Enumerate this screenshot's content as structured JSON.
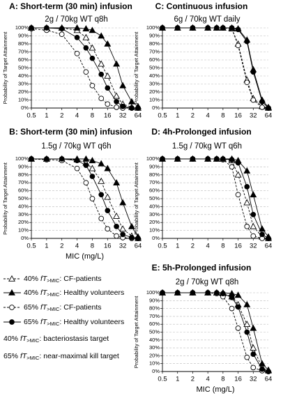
{
  "legend": {
    "entries": [
      {
        "prefix": "40% ",
        "metric_f": "f",
        "metric_t": "T",
        "subscript": ">MIC",
        "suffix": ": CF-patients",
        "marker": "triangle",
        "filled": false,
        "dashed": true
      },
      {
        "prefix": "40% ",
        "metric_f": "f",
        "metric_t": "T",
        "subscript": ">MIC",
        "suffix": ": Healthy volunteers",
        "marker": "triangle",
        "filled": true,
        "dashed": false
      },
      {
        "prefix": "65% ",
        "metric_f": "f",
        "metric_t": "T",
        "subscript": ">MIC",
        "suffix": ": CF-patients",
        "marker": "circle",
        "filled": false,
        "dashed": true
      },
      {
        "prefix": "65% ",
        "metric_f": "f",
        "metric_t": "T",
        "subscript": ">MIC",
        "suffix": ": Healthy volunteers",
        "marker": "circle",
        "filled": true,
        "dashed": false
      }
    ],
    "notes": [
      {
        "prefix": "40% ",
        "metric_f": "f",
        "metric_t": "T",
        "subscript": ">MIC",
        "suffix": ": bacteriostasis target"
      },
      {
        "prefix": "65% ",
        "metric_f": "f",
        "metric_t": "T",
        "subscript": ">MIC",
        "suffix": ": near-maximal kill target"
      }
    ]
  },
  "chart_data": [
    {
      "type": "line",
      "title": "A: Short-term (30 min) infusion",
      "subtitle": "2g / 70kg WT q8h",
      "ylabel": "Probability of Target Attainment",
      "color": "#000000",
      "grid": true,
      "log_base": 2,
      "x": [
        0.5,
        1,
        2,
        4,
        6,
        8,
        12,
        16,
        24,
        32,
        48,
        64
      ],
      "xlim": [
        0.5,
        64
      ],
      "xticks": [
        0.5,
        1,
        2,
        4,
        8,
        16,
        32,
        64
      ],
      "ylim": [
        0,
        100
      ],
      "yticks": [
        {
          "value": 0,
          "label": "0%"
        },
        {
          "value": 10,
          "label": "10%"
        },
        {
          "value": 20,
          "label": "20%"
        },
        {
          "value": 30,
          "label": "30%"
        },
        {
          "value": 40,
          "label": "40%"
        },
        {
          "value": 50,
          "label": "50%"
        },
        {
          "value": 60,
          "label": "60%"
        },
        {
          "value": 70,
          "label": "70%"
        },
        {
          "value": 80,
          "label": "80%"
        },
        {
          "value": 90,
          "label": "90%"
        },
        {
          "value": 100,
          "label": "100%"
        }
      ],
      "series": [
        {
          "values": [
            100,
            100,
            100,
            97,
            88,
            75,
            55,
            40,
            15,
            5,
            1,
            0
          ]
        },
        {
          "values": [
            100,
            100,
            100,
            100,
            99,
            97,
            90,
            80,
            55,
            28,
            8,
            2
          ]
        },
        {
          "values": [
            99,
            97,
            92,
            68,
            45,
            28,
            12,
            5,
            1,
            0,
            0,
            0
          ]
        },
        {
          "values": [
            100,
            100,
            99,
            88,
            75,
            62,
            42,
            25,
            8,
            2,
            0,
            0
          ]
        }
      ]
    },
    {
      "type": "line",
      "title": "C: Continuous infusion",
      "subtitle": "6g / 70kg WT daily",
      "ylabel": "Probability of Target Attainment",
      "color": "#000000",
      "grid": true,
      "log_base": 2,
      "x": [
        0.5,
        1,
        2,
        4,
        6,
        8,
        12,
        16,
        24,
        32,
        48,
        64
      ],
      "xlim": [
        0.5,
        64
      ],
      "xticks": [
        0.5,
        1,
        2,
        4,
        8,
        16,
        32,
        64
      ],
      "ylim": [
        0,
        100
      ],
      "yticks": [
        {
          "value": 0,
          "label": "0%"
        },
        {
          "value": 10,
          "label": "10%"
        },
        {
          "value": 20,
          "label": "20%"
        },
        {
          "value": 30,
          "label": "30%"
        },
        {
          "value": 40,
          "label": "40%"
        },
        {
          "value": 50,
          "label": "50%"
        },
        {
          "value": 60,
          "label": "60%"
        },
        {
          "value": 70,
          "label": "70%"
        },
        {
          "value": 80,
          "label": "80%"
        },
        {
          "value": 90,
          "label": "90%"
        },
        {
          "value": 100,
          "label": "100%"
        }
      ],
      "series": [
        {
          "values": [
            100,
            100,
            100,
            100,
            100,
            100,
            99,
            80,
            35,
            12,
            2,
            0
          ]
        },
        {
          "values": [
            100,
            100,
            100,
            100,
            100,
            100,
            100,
            99,
            85,
            48,
            10,
            1
          ]
        },
        {
          "values": [
            100,
            100,
            100,
            100,
            100,
            100,
            99,
            78,
            32,
            10,
            1,
            0
          ]
        },
        {
          "values": [
            100,
            100,
            100,
            100,
            100,
            100,
            100,
            98,
            83,
            45,
            8,
            0
          ]
        }
      ]
    },
    {
      "type": "line",
      "title": "B: Short-term (30 min) infusion",
      "subtitle": "1.5g / 70kg WT q6h",
      "ylabel": "Probability of Target Attainment",
      "xlabel": "MIC (mg/L)",
      "color": "#000000",
      "grid": true,
      "log_base": 2,
      "x": [
        0.5,
        1,
        2,
        4,
        6,
        8,
        12,
        16,
        24,
        32,
        48,
        64
      ],
      "xlim": [
        0.5,
        64
      ],
      "xticks": [
        0.5,
        1,
        2,
        4,
        8,
        16,
        32,
        64
      ],
      "ylim": [
        0,
        100
      ],
      "yticks": [
        {
          "value": 0,
          "label": "0%"
        },
        {
          "value": 10,
          "label": "10%"
        },
        {
          "value": 20,
          "label": "20%"
        },
        {
          "value": 30,
          "label": "30%"
        },
        {
          "value": 40,
          "label": "40%"
        },
        {
          "value": 50,
          "label": "50%"
        },
        {
          "value": 60,
          "label": "60%"
        },
        {
          "value": 70,
          "label": "70%"
        },
        {
          "value": 80,
          "label": "80%"
        },
        {
          "value": 90,
          "label": "90%"
        },
        {
          "value": 100,
          "label": "100%"
        }
      ],
      "series": [
        {
          "values": [
            100,
            100,
            100,
            99,
            95,
            88,
            72,
            52,
            28,
            12,
            3,
            0
          ]
        },
        {
          "values": [
            100,
            100,
            100,
            100,
            100,
            98,
            94,
            88,
            70,
            45,
            15,
            2
          ]
        },
        {
          "values": [
            100,
            99,
            98,
            88,
            70,
            50,
            25,
            12,
            3,
            1,
            0,
            0
          ]
        },
        {
          "values": [
            100,
            100,
            100,
            98,
            92,
            78,
            55,
            35,
            15,
            5,
            1,
            0
          ]
        }
      ]
    },
    {
      "type": "line",
      "title": "D: 4h-Prolonged infusion",
      "subtitle": "1.5g / 70kg WT q6h",
      "ylabel": "Probability of Target Attainment",
      "color": "#000000",
      "grid": true,
      "log_base": 2,
      "x": [
        0.5,
        1,
        2,
        4,
        6,
        8,
        12,
        16,
        24,
        32,
        48,
        64
      ],
      "xlim": [
        0.5,
        64
      ],
      "xticks": [
        0.5,
        1,
        2,
        4,
        8,
        16,
        32,
        64
      ],
      "ylim": [
        0,
        100
      ],
      "yticks": [
        {
          "value": 0,
          "label": "0%"
        },
        {
          "value": 10,
          "label": "10%"
        },
        {
          "value": 20,
          "label": "20%"
        },
        {
          "value": 30,
          "label": "30%"
        },
        {
          "value": 40,
          "label": "40%"
        },
        {
          "value": 50,
          "label": "50%"
        },
        {
          "value": 60,
          "label": "60%"
        },
        {
          "value": 70,
          "label": "70%"
        },
        {
          "value": 80,
          "label": "80%"
        },
        {
          "value": 90,
          "label": "90%"
        },
        {
          "value": 100,
          "label": "100%"
        }
      ],
      "series": [
        {
          "values": [
            100,
            100,
            100,
            100,
            100,
            100,
            98,
            80,
            45,
            15,
            2,
            0
          ]
        },
        {
          "values": [
            100,
            100,
            100,
            100,
            100,
            100,
            100,
            98,
            85,
            55,
            12,
            2
          ]
        },
        {
          "values": [
            100,
            100,
            100,
            100,
            100,
            99,
            90,
            55,
            15,
            3,
            0,
            0
          ]
        },
        {
          "values": [
            100,
            100,
            100,
            100,
            100,
            100,
            99,
            95,
            65,
            30,
            5,
            0
          ]
        }
      ]
    },
    {
      "type": "line",
      "title": "E: 5h-Prolonged infusion",
      "subtitle": "2g / 70kg WT q8h",
      "ylabel": "Probability of Target Attainment",
      "xlabel": "MIC (mg/L)",
      "color": "#000000",
      "grid": true,
      "log_base": 2,
      "x": [
        0.5,
        1,
        2,
        4,
        6,
        8,
        12,
        16,
        24,
        32,
        48,
        64
      ],
      "xlim": [
        0.5,
        64
      ],
      "xticks": [
        0.5,
        1,
        2,
        4,
        8,
        16,
        32,
        64
      ],
      "ylim": [
        0,
        100
      ],
      "yticks": [
        {
          "value": 0,
          "label": "0%"
        },
        {
          "value": 10,
          "label": "10%"
        },
        {
          "value": 20,
          "label": "20%"
        },
        {
          "value": 30,
          "label": "30%"
        },
        {
          "value": 40,
          "label": "40%"
        },
        {
          "value": 50,
          "label": "50%"
        },
        {
          "value": 60,
          "label": "60%"
        },
        {
          "value": 70,
          "label": "70%"
        },
        {
          "value": 80,
          "label": "80%"
        },
        {
          "value": 90,
          "label": "90%"
        },
        {
          "value": 100,
          "label": "100%"
        }
      ],
      "series": [
        {
          "values": [
            100,
            100,
            100,
            100,
            100,
            99,
            95,
            85,
            60,
            30,
            5,
            1
          ]
        },
        {
          "values": [
            100,
            100,
            100,
            100,
            100,
            100,
            99,
            97,
            85,
            55,
            10,
            2
          ]
        },
        {
          "values": [
            100,
            100,
            100,
            100,
            99,
            95,
            80,
            55,
            18,
            5,
            1,
            0
          ]
        },
        {
          "values": [
            100,
            100,
            100,
            100,
            100,
            99,
            94,
            82,
            50,
            22,
            3,
            0
          ]
        }
      ]
    }
  ]
}
